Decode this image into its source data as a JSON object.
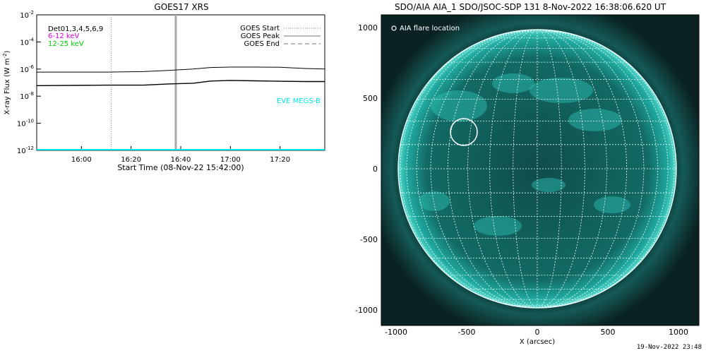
{
  "goes_panel": {
    "title": "GOES17 XRS",
    "xlabel": "Start Time (08-Nov-22 15:42:00)",
    "ylabel": "X-ray Flux (W m",
    "ylabel_sup": "-2",
    "ylabel_close": ")",
    "channels_label": "Det01,3,4,5,6,9",
    "band_low": "6-12 keV",
    "band_high": "12-25 keV",
    "legend_start": "GOES Start",
    "legend_peak": "GOES Peak",
    "legend_end": "GOES End",
    "eve_label": "EVE MEGS-B",
    "colors": {
      "band_low": "#dd00dd",
      "band_high": "#00cc00",
      "eve": "#00e5ee",
      "marker": "#aaaaaa"
    }
  },
  "aia_panel": {
    "title": "SDO/AIA AIA_1 SDO/JSOC-SDP 131  8-Nov-2022 16:38:06.620 UT",
    "legend": "AIA flare location",
    "xlabel": "X (arcsec)",
    "xticks": [
      "-1000",
      "-500",
      "0",
      "500",
      "1000"
    ],
    "yticks": [
      "1000",
      "500",
      "0",
      "-500",
      "-1000"
    ],
    "colors": {
      "disk": "#1fa89e",
      "background": "#0c2a2a",
      "limb": "#8ff0e6"
    }
  },
  "footer": {
    "timestamp": "19-Nov-2022 23:48"
  },
  "chart_data": [
    {
      "type": "line",
      "title": "GOES17 XRS",
      "xlabel": "Start Time (08-Nov-22 15:42:00)",
      "ylabel": "X-ray Flux (W m^-2)",
      "yscale": "log",
      "ylim": [
        1e-12,
        0.01
      ],
      "xlim": [
        "15:42",
        "17:38"
      ],
      "x_ticks": [
        "16:00",
        "16:20",
        "16:40",
        "17:00",
        "17:20"
      ],
      "y_ticks": [
        "10^-12",
        "10^-10",
        "10^-8",
        "10^-6",
        "10^-4",
        "10^-2"
      ],
      "series": [
        {
          "name": "6-12 keV",
          "x": [
            "15:42",
            "16:10",
            "16:25",
            "16:35",
            "16:45",
            "16:52",
            "17:00",
            "17:10",
            "17:20",
            "17:30",
            "17:38"
          ],
          "values": [
            6e-07,
            6e-07,
            6.5e-07,
            8e-07,
            1e-06,
            1.3e-06,
            1.4e-06,
            1.4e-06,
            1.35e-06,
            1.1e-06,
            1e-06
          ]
        },
        {
          "name": "12-25 keV",
          "x": [
            "15:42",
            "16:10",
            "16:25",
            "16:35",
            "16:45",
            "16:52",
            "17:00",
            "17:10",
            "17:20",
            "17:30",
            "17:38"
          ],
          "values": [
            6e-08,
            6.5e-08,
            6.5e-08,
            8e-08,
            9e-08,
            1.3e-07,
            1.45e-07,
            1.35e-07,
            1.25e-07,
            1.2e-07,
            1.2e-07
          ]
        },
        {
          "name": "EVE MEGS-B",
          "x": [
            "15:42",
            "17:38"
          ],
          "values": [
            1e-12,
            1e-12
          ]
        }
      ],
      "markers": [
        {
          "name": "GOES Start",
          "x": "16:12",
          "style": "dotted"
        },
        {
          "name": "GOES Peak",
          "x": "16:38",
          "style": "solid"
        }
      ],
      "legend": "top-right"
    }
  ]
}
